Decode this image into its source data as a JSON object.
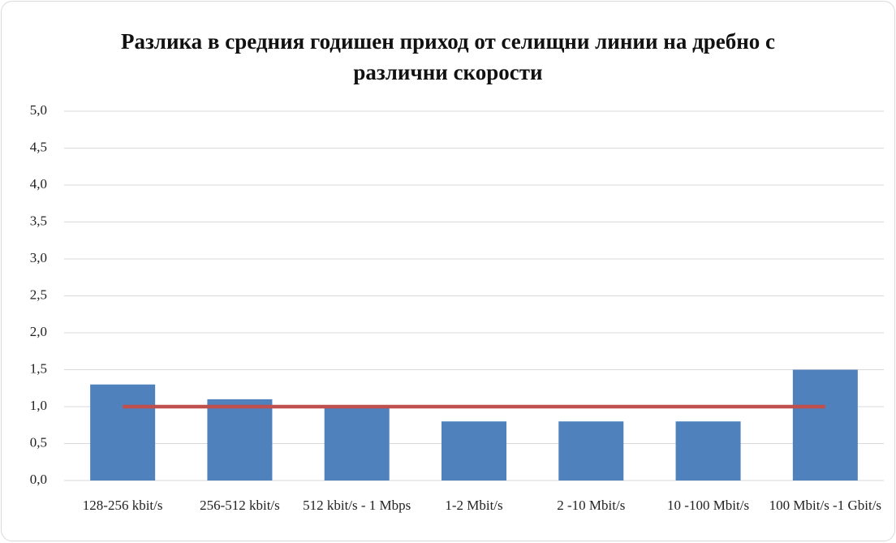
{
  "chart_data": {
    "type": "bar_line",
    "title": "Разлика в средния годишен приход от селищни линии на дребно с различни скорости",
    "categories": [
      "128-256 kbit/s",
      "256-512 kbit/s",
      "512 kbit/s - 1 Mbps",
      "1-2 Mbit/s",
      "2 -10 Mbit/s",
      "10 -100 Mbit/s",
      "100 Mbit/s -1 Gbit/s"
    ],
    "series": [
      {
        "type": "bar",
        "color": "#4f81bd",
        "values": [
          1.3,
          1.1,
          1.0,
          0.8,
          0.8,
          0.8,
          1.5
        ]
      },
      {
        "type": "line",
        "color": "#c0504d",
        "values": [
          1.0,
          1.0,
          1.0,
          1.0,
          1.0,
          1.0,
          1.0
        ]
      }
    ],
    "ylim": [
      0,
      5
    ],
    "yticks": [
      {
        "value": 0,
        "label": "0,0"
      },
      {
        "value": 0.5,
        "label": "0,5"
      },
      {
        "value": 1,
        "label": "1,0"
      },
      {
        "value": 1.5,
        "label": "1,5"
      },
      {
        "value": 2,
        "label": "2,0"
      },
      {
        "value": 2.5,
        "label": "2,5"
      },
      {
        "value": 3,
        "label": "3,0"
      },
      {
        "value": 3.5,
        "label": "3,5"
      },
      {
        "value": 4,
        "label": "4,0"
      },
      {
        "value": 4.5,
        "label": "4,5"
      },
      {
        "value": 5,
        "label": "5,0"
      }
    ],
    "grid": true
  }
}
